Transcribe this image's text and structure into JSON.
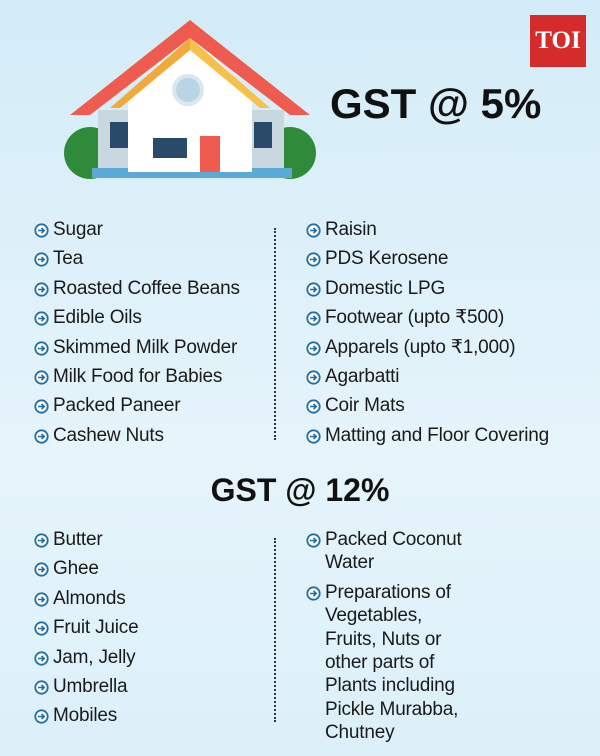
{
  "logo": "TOI",
  "sections": [
    {
      "title": "GST @ 5%",
      "left": [
        "Sugar",
        "Tea",
        "Roasted Coffee Beans",
        "Edible Oils",
        "Skimmed Milk Powder",
        "Milk Food for Babies",
        "Packed Paneer",
        "Cashew Nuts"
      ],
      "right": [
        "Raisin",
        "PDS Kerosene",
        "Domestic LPG",
        "Footwear (upto ₹500)",
        "Apparels (upto ₹1,000)",
        "Agarbatti",
        "Coir Mats",
        "Matting and Floor Covering"
      ]
    },
    {
      "title": "GST @ 12%",
      "left": [
        "Butter",
        "Ghee",
        "Almonds",
        "Fruit Juice",
        "Jam, Jelly",
        "Umbrella",
        "Mobiles"
      ],
      "right": [
        "Packed Coconut Water",
        "Preparations of Vegetables, Fruits, Nuts or other parts of Plants including Pickle Murabba, Chutney"
      ]
    }
  ]
}
